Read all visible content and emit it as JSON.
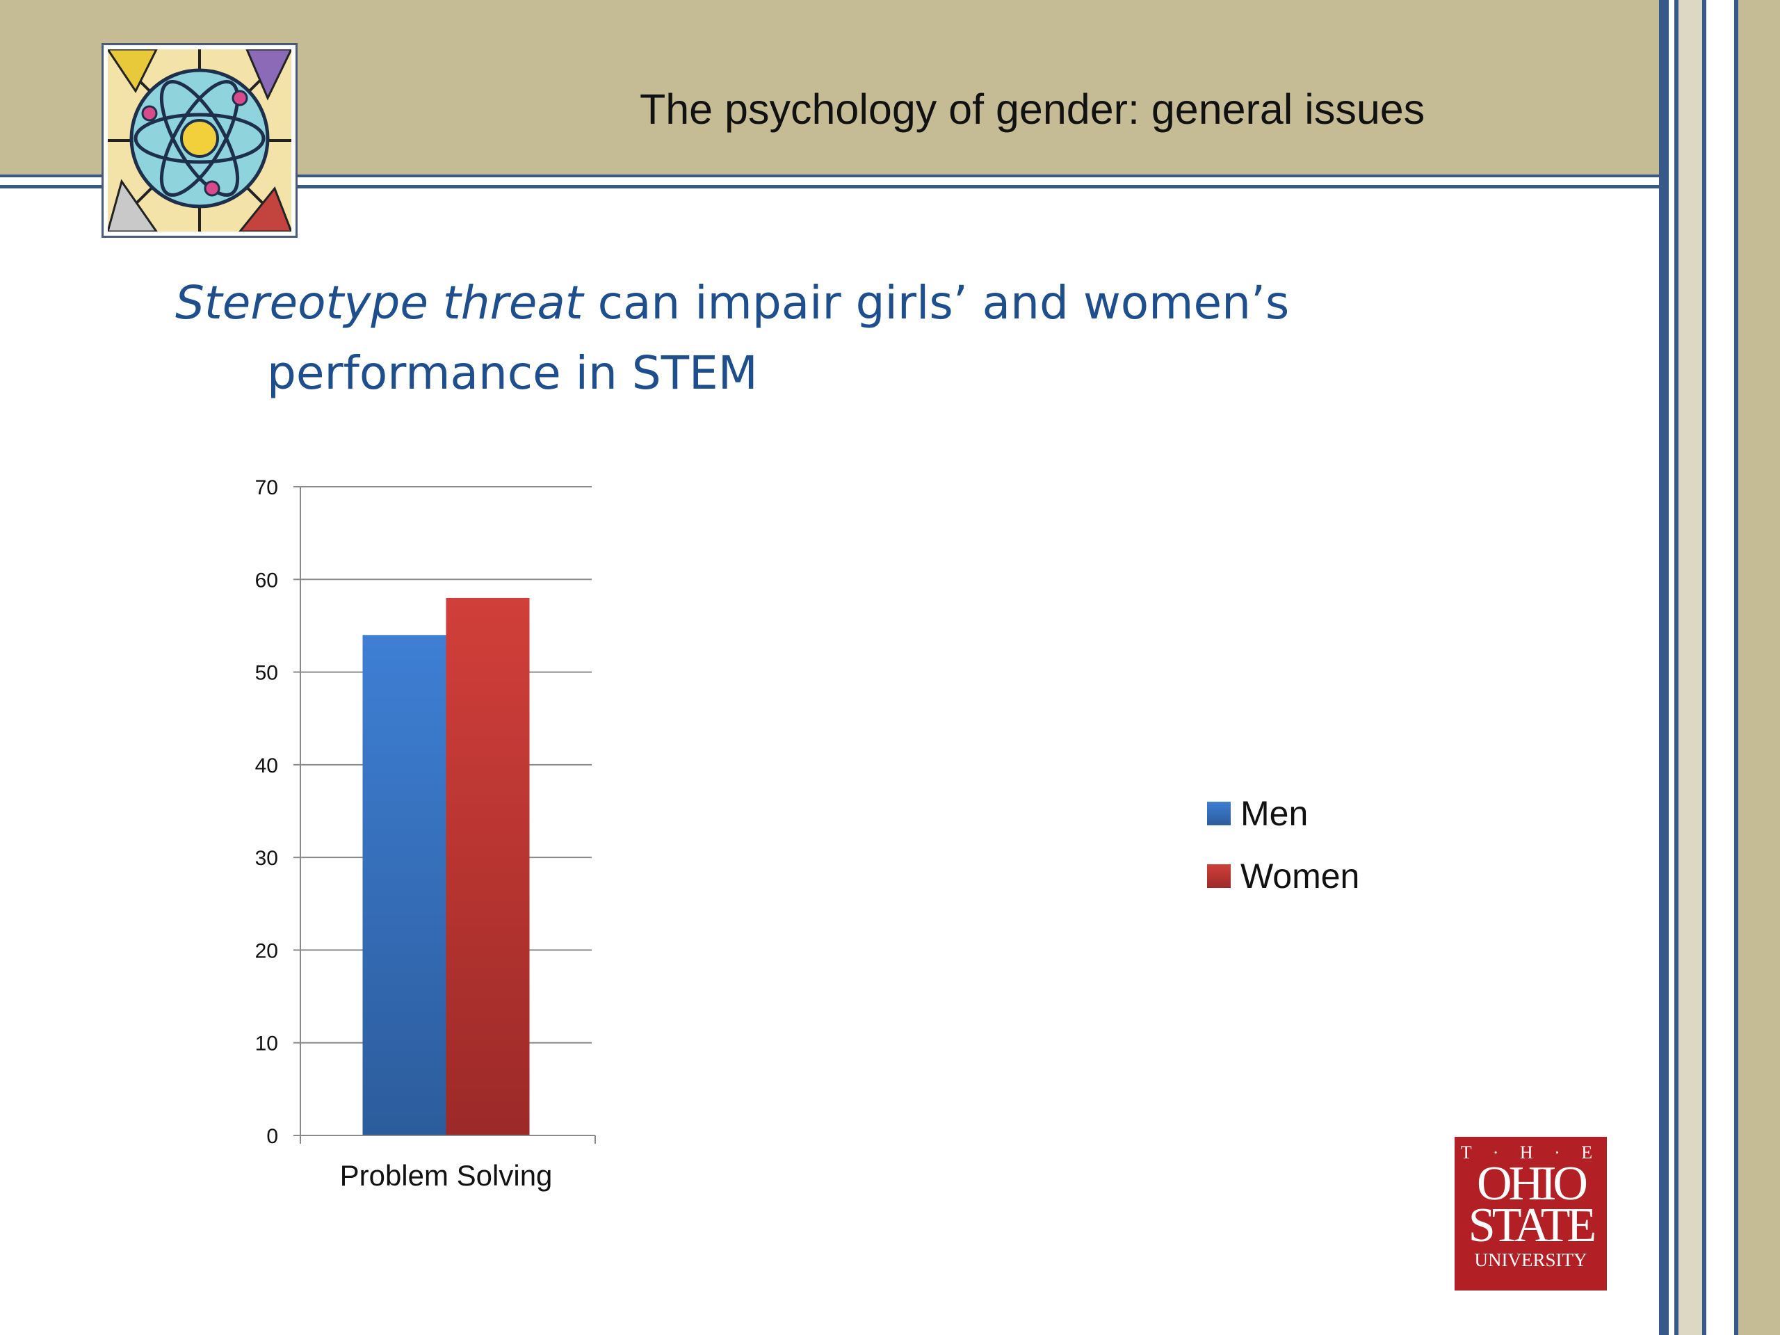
{
  "header": {
    "title": "The psychology of gender: general issues"
  },
  "slide": {
    "title_italic": "Stereotype threat",
    "title_rest_line1": " can impair girls’ and women’s",
    "title_line2": "performance in STEM"
  },
  "chart_data": {
    "type": "bar",
    "categories": [
      "Problem Solving"
    ],
    "series": [
      {
        "name": "Men",
        "values": [
          54
        ],
        "color": "#3a74c2"
      },
      {
        "name": "Women",
        "values": [
          58
        ],
        "color": "#c23a36"
      }
    ],
    "ylim": [
      0,
      70
    ],
    "yticks": [
      "0",
      "10",
      "20",
      "30",
      "40",
      "50",
      "60",
      "70"
    ],
    "grid": true,
    "legend_position": "right"
  },
  "legend": {
    "men": "Men",
    "women": "Women"
  },
  "logo": {
    "the": "T · H · E",
    "ohio": "OHIO",
    "state": "STATE",
    "university": "UNIVERSITY"
  }
}
